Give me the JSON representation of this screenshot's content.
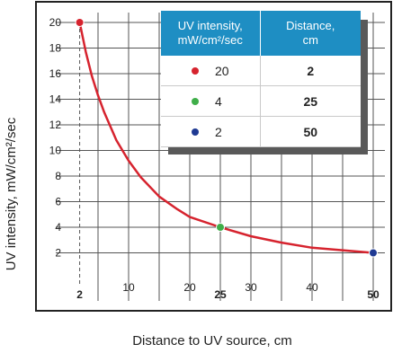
{
  "chart_data": {
    "type": "line",
    "title": "",
    "xlabel": "Distance to UV source, cm",
    "ylabel": "UV intensity, mW/cm²/sec",
    "xlim": [
      0,
      50
    ],
    "ylim": [
      0,
      20
    ],
    "xticks": [
      10,
      20,
      30,
      40
    ],
    "yticks": [
      2,
      4,
      6,
      8,
      10,
      12,
      14,
      16,
      18,
      20
    ],
    "x_highlight_ticks": [
      "2",
      "25",
      "50"
    ],
    "grid": true,
    "series": [
      {
        "x": [
          2,
          3,
          4,
          5,
          6,
          8,
          10,
          12,
          15,
          18,
          20,
          25,
          30,
          35,
          40,
          45,
          50
        ],
        "y": [
          20,
          17.7,
          15.8,
          14.3,
          13.0,
          10.8,
          9.2,
          7.9,
          6.4,
          5.4,
          4.8,
          4.0,
          3.3,
          2.8,
          2.4,
          2.2,
          2.0
        ],
        "color": "#d6232e"
      }
    ],
    "points": [
      {
        "x": 2,
        "y": 20,
        "color": "#d6232e"
      },
      {
        "x": 25,
        "y": 4,
        "color": "#3fae49"
      },
      {
        "x": 50,
        "y": 2,
        "color": "#1f3a93"
      }
    ]
  },
  "legend_table": {
    "header": {
      "intensity": [
        "UV intensity,",
        "mW/cm²/sec"
      ],
      "distance": [
        "Distance,",
        "cm"
      ]
    },
    "rows": [
      {
        "intensity": "20",
        "distance": "2",
        "color": "#d6232e"
      },
      {
        "intensity": "4",
        "distance": "25",
        "color": "#3fae49"
      },
      {
        "intensity": "2",
        "distance": "50",
        "color": "#1f3a93"
      }
    ]
  }
}
